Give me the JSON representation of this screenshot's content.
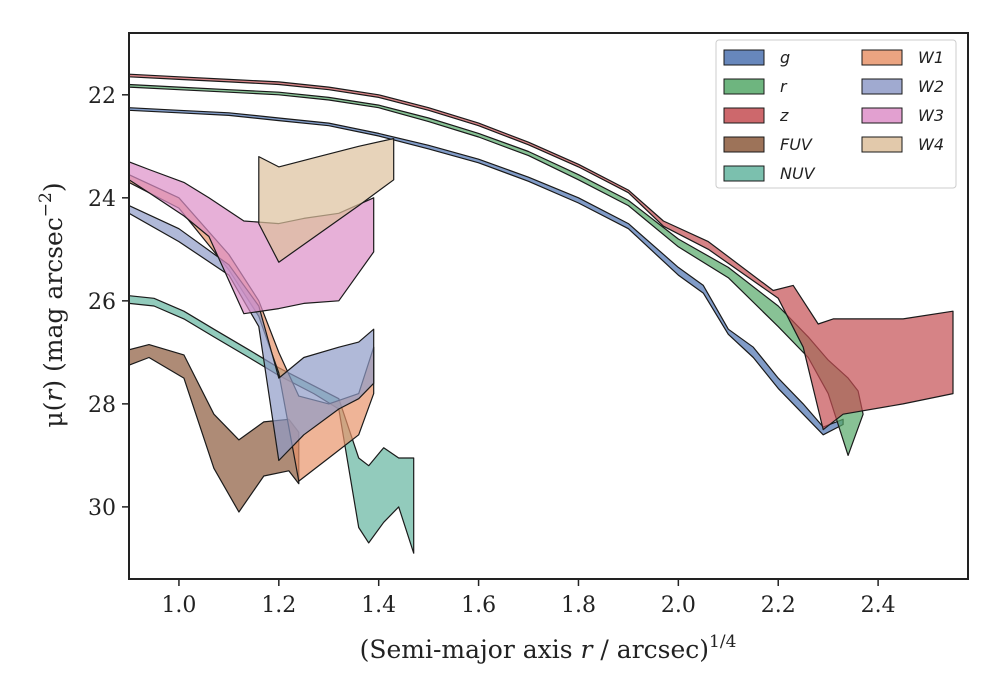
{
  "chart_data": {
    "type": "area",
    "title": "",
    "xlabel": {
      "prefix": "(Semi-major axis ",
      "var": "r",
      "suffix": " / arcsec)",
      "sup": "1/4"
    },
    "ylabel": {
      "prefix": "μ(",
      "var": "r",
      "suffix": ") (mag arcsec",
      "sup": "−2",
      "close": ")"
    },
    "xlim": [
      0.9,
      2.58
    ],
    "ylim": [
      31.4,
      20.8
    ],
    "y_inverted": true,
    "xticks": [
      1.0,
      1.2,
      1.4,
      1.6,
      1.8,
      2.0,
      2.2,
      2.4
    ],
    "xtick_labels": [
      "1.0",
      "1.2",
      "1.4",
      "1.6",
      "1.8",
      "2.0",
      "2.2",
      "2.4"
    ],
    "yticks": [
      22,
      24,
      26,
      28,
      30
    ],
    "ytick_labels": [
      "22",
      "24",
      "26",
      "28",
      "30"
    ],
    "grid": false,
    "legend_position": "top-right",
    "series": [
      {
        "name": "g",
        "color": "#4c72b0",
        "upper": [
          [
            0.9,
            22.25
          ],
          [
            1.0,
            22.3
          ],
          [
            1.1,
            22.35
          ],
          [
            1.2,
            22.45
          ],
          [
            1.3,
            22.55
          ],
          [
            1.4,
            22.75
          ],
          [
            1.5,
            22.98
          ],
          [
            1.6,
            23.25
          ],
          [
            1.7,
            23.6
          ],
          [
            1.8,
            24.0
          ],
          [
            1.9,
            24.5
          ],
          [
            2.0,
            25.35
          ],
          [
            2.05,
            25.7
          ],
          [
            2.1,
            26.55
          ],
          [
            2.15,
            26.9
          ],
          [
            2.2,
            27.5
          ],
          [
            2.25,
            28.0
          ],
          [
            2.29,
            28.45
          ],
          [
            2.33,
            28.3
          ]
        ],
        "lower": [
          [
            0.9,
            22.3
          ],
          [
            1.0,
            22.35
          ],
          [
            1.1,
            22.4
          ],
          [
            1.2,
            22.5
          ],
          [
            1.3,
            22.6
          ],
          [
            1.4,
            22.8
          ],
          [
            1.5,
            23.05
          ],
          [
            1.6,
            23.32
          ],
          [
            1.7,
            23.68
          ],
          [
            1.8,
            24.1
          ],
          [
            1.9,
            24.6
          ],
          [
            2.0,
            25.5
          ],
          [
            2.05,
            25.85
          ],
          [
            2.1,
            26.65
          ],
          [
            2.15,
            27.1
          ],
          [
            2.2,
            27.7
          ],
          [
            2.25,
            28.2
          ],
          [
            2.29,
            28.6
          ],
          [
            2.33,
            28.4
          ]
        ]
      },
      {
        "name": "r",
        "color": "#55a868",
        "upper": [
          [
            0.9,
            21.8
          ],
          [
            1.0,
            21.85
          ],
          [
            1.1,
            21.9
          ],
          [
            1.2,
            21.95
          ],
          [
            1.3,
            22.05
          ],
          [
            1.4,
            22.2
          ],
          [
            1.5,
            22.45
          ],
          [
            1.6,
            22.75
          ],
          [
            1.7,
            23.1
          ],
          [
            1.8,
            23.55
          ],
          [
            1.9,
            24.05
          ],
          [
            2.0,
            24.8
          ],
          [
            2.1,
            25.35
          ],
          [
            2.2,
            26.1
          ],
          [
            2.26,
            26.7
          ],
          [
            2.3,
            27.15
          ],
          [
            2.34,
            27.5
          ],
          [
            2.36,
            27.75
          ]
        ],
        "lower": [
          [
            0.9,
            21.85
          ],
          [
            1.0,
            21.9
          ],
          [
            1.1,
            21.95
          ],
          [
            1.2,
            22.0
          ],
          [
            1.3,
            22.1
          ],
          [
            1.4,
            22.25
          ],
          [
            1.5,
            22.52
          ],
          [
            1.6,
            22.82
          ],
          [
            1.7,
            23.18
          ],
          [
            1.8,
            23.65
          ],
          [
            1.9,
            24.15
          ],
          [
            2.0,
            24.95
          ],
          [
            2.1,
            25.55
          ],
          [
            2.2,
            26.5
          ],
          [
            2.26,
            27.1
          ],
          [
            2.3,
            27.8
          ],
          [
            2.34,
            29.0
          ],
          [
            2.37,
            28.2
          ]
        ]
      },
      {
        "name": "z",
        "color": "#c44e52",
        "upper": [
          [
            0.9,
            21.6
          ],
          [
            1.0,
            21.65
          ],
          [
            1.1,
            21.7
          ],
          [
            1.2,
            21.75
          ],
          [
            1.3,
            21.85
          ],
          [
            1.4,
            22.0
          ],
          [
            1.5,
            22.25
          ],
          [
            1.6,
            22.55
          ],
          [
            1.7,
            22.92
          ],
          [
            1.8,
            23.35
          ],
          [
            1.9,
            23.85
          ],
          [
            1.97,
            24.45
          ],
          [
            2.06,
            24.85
          ],
          [
            2.19,
            25.8
          ],
          [
            2.23,
            25.7
          ],
          [
            2.28,
            26.45
          ],
          [
            2.31,
            26.35
          ],
          [
            2.45,
            26.35
          ],
          [
            2.55,
            26.2
          ]
        ],
        "lower": [
          [
            0.9,
            21.65
          ],
          [
            1.0,
            21.7
          ],
          [
            1.1,
            21.75
          ],
          [
            1.2,
            21.8
          ],
          [
            1.3,
            21.9
          ],
          [
            1.4,
            22.05
          ],
          [
            1.5,
            22.3
          ],
          [
            1.6,
            22.6
          ],
          [
            1.7,
            22.97
          ],
          [
            1.8,
            23.4
          ],
          [
            1.9,
            23.9
          ],
          [
            1.97,
            24.55
          ],
          [
            2.06,
            25.0
          ],
          [
            2.2,
            25.95
          ],
          [
            2.25,
            26.9
          ],
          [
            2.29,
            28.5
          ],
          [
            2.33,
            28.2
          ],
          [
            2.45,
            28.0
          ],
          [
            2.55,
            27.8
          ]
        ]
      },
      {
        "name": "FUV",
        "color": "#8c5a3c",
        "upper": [
          [
            0.9,
            26.95
          ],
          [
            0.94,
            26.85
          ],
          [
            1.01,
            27.05
          ],
          [
            1.07,
            28.2
          ],
          [
            1.12,
            28.7
          ],
          [
            1.17,
            28.35
          ],
          [
            1.22,
            28.3
          ],
          [
            1.24,
            28.55
          ]
        ],
        "lower": [
          [
            0.9,
            27.25
          ],
          [
            0.94,
            27.1
          ],
          [
            1.01,
            27.5
          ],
          [
            1.07,
            29.25
          ],
          [
            1.12,
            30.1
          ],
          [
            1.17,
            29.4
          ],
          [
            1.22,
            29.3
          ],
          [
            1.24,
            29.55
          ]
        ]
      },
      {
        "name": "NUV",
        "color": "#64b5a0",
        "upper": [
          [
            0.9,
            25.9
          ],
          [
            0.95,
            25.95
          ],
          [
            1.01,
            26.2
          ],
          [
            1.07,
            26.55
          ],
          [
            1.14,
            26.95
          ],
          [
            1.2,
            27.3
          ],
          [
            1.27,
            27.65
          ],
          [
            1.32,
            27.9
          ],
          [
            1.36,
            29.05
          ],
          [
            1.38,
            29.2
          ],
          [
            1.41,
            28.85
          ],
          [
            1.44,
            29.05
          ],
          [
            1.47,
            29.05
          ]
        ],
        "lower": [
          [
            0.9,
            26.05
          ],
          [
            0.95,
            26.1
          ],
          [
            1.01,
            26.35
          ],
          [
            1.07,
            26.7
          ],
          [
            1.14,
            27.1
          ],
          [
            1.2,
            27.45
          ],
          [
            1.27,
            27.8
          ],
          [
            1.32,
            28.1
          ],
          [
            1.36,
            30.4
          ],
          [
            1.38,
            30.7
          ],
          [
            1.41,
            30.3
          ],
          [
            1.44,
            30.0
          ],
          [
            1.47,
            30.9
          ]
        ]
      },
      {
        "name": "W1",
        "color": "#e8946b",
        "upper": [
          [
            0.9,
            23.55
          ],
          [
            1.0,
            24.0
          ],
          [
            1.1,
            25.1
          ],
          [
            1.16,
            26.0
          ],
          [
            1.2,
            27.0
          ],
          [
            1.24,
            27.85
          ],
          [
            1.3,
            28.0
          ],
          [
            1.36,
            27.8
          ],
          [
            1.39,
            26.9
          ]
        ],
        "lower": [
          [
            0.9,
            23.7
          ],
          [
            1.0,
            24.2
          ],
          [
            1.1,
            25.4
          ],
          [
            1.16,
            26.3
          ],
          [
            1.2,
            27.4
          ],
          [
            1.24,
            29.5
          ],
          [
            1.3,
            29.05
          ],
          [
            1.36,
            28.6
          ],
          [
            1.39,
            27.8
          ]
        ]
      },
      {
        "name": "W2",
        "color": "#8f9bc8",
        "upper": [
          [
            0.9,
            24.15
          ],
          [
            1.0,
            24.6
          ],
          [
            1.1,
            25.3
          ],
          [
            1.16,
            26.1
          ],
          [
            1.2,
            27.5
          ],
          [
            1.25,
            27.1
          ],
          [
            1.32,
            26.9
          ],
          [
            1.36,
            26.8
          ],
          [
            1.39,
            26.55
          ]
        ],
        "lower": [
          [
            0.9,
            24.3
          ],
          [
            1.0,
            24.85
          ],
          [
            1.1,
            25.5
          ],
          [
            1.16,
            26.5
          ],
          [
            1.2,
            29.1
          ],
          [
            1.25,
            28.6
          ],
          [
            1.32,
            28.1
          ],
          [
            1.36,
            27.9
          ],
          [
            1.39,
            27.6
          ]
        ]
      },
      {
        "name": "W3",
        "color": "#dd8fc8",
        "upper": [
          [
            0.9,
            23.3
          ],
          [
            0.94,
            23.45
          ],
          [
            1.01,
            23.7
          ],
          [
            1.06,
            24.0
          ],
          [
            1.13,
            24.45
          ],
          [
            1.2,
            24.5
          ],
          [
            1.25,
            24.4
          ],
          [
            1.32,
            24.3
          ],
          [
            1.39,
            24.0
          ]
        ],
        "lower": [
          [
            0.9,
            23.65
          ],
          [
            0.94,
            23.9
          ],
          [
            1.01,
            24.35
          ],
          [
            1.06,
            24.75
          ],
          [
            1.13,
            26.25
          ],
          [
            1.2,
            26.15
          ],
          [
            1.25,
            26.05
          ],
          [
            1.32,
            26.0
          ],
          [
            1.39,
            25.05
          ]
        ]
      },
      {
        "name": "W4",
        "color": "#ddc09c",
        "upper": [
          [
            1.16,
            23.2
          ],
          [
            1.2,
            23.4
          ],
          [
            1.28,
            23.2
          ],
          [
            1.36,
            23.0
          ],
          [
            1.43,
            22.85
          ]
        ],
        "lower": [
          [
            1.16,
            24.5
          ],
          [
            1.2,
            25.25
          ],
          [
            1.28,
            24.7
          ],
          [
            1.36,
            24.15
          ],
          [
            1.43,
            23.65
          ]
        ]
      }
    ]
  }
}
